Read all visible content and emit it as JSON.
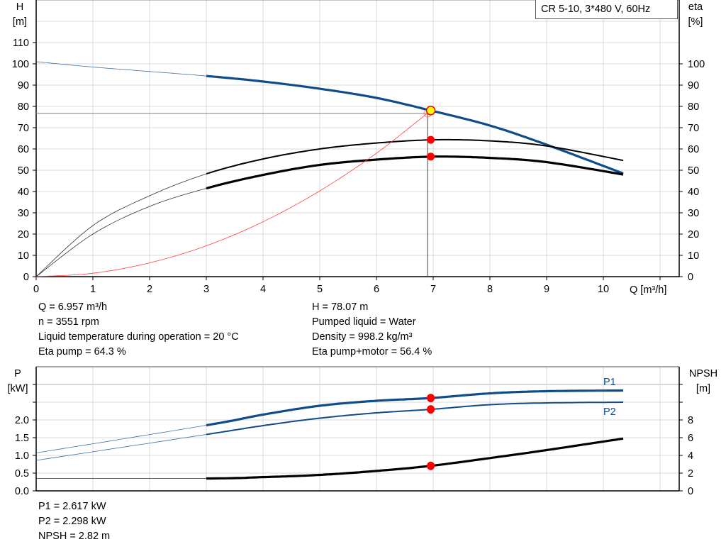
{
  "chart_data": [
    {
      "type": "line",
      "legend_box": "CR 5-10, 3*480 V, 60Hz",
      "xlabel": "Q [m³/h]",
      "ylabel_left": [
        "H",
        "[m]"
      ],
      "ylabel_right": [
        "eta",
        "[%]"
      ],
      "xlim": [
        0,
        11.3
      ],
      "ylim": [
        0,
        120
      ],
      "grid": true,
      "x_ticks": [
        "0",
        "1",
        "2",
        "3",
        "4",
        "5",
        "6",
        "7",
        "8",
        "9",
        "10"
      ],
      "y_ticks_left": [
        "0",
        "10",
        "20",
        "30",
        "40",
        "50",
        "60",
        "70",
        "80",
        "90",
        "100",
        "110"
      ],
      "y_ticks_right": [
        "0",
        "10",
        "20",
        "30",
        "40",
        "50",
        "60",
        "70",
        "80",
        "90",
        "100"
      ],
      "colors": {
        "head": "#0f4c8a",
        "eta": "#000000",
        "system": "#ff4040",
        "point": "#ff0000",
        "duty": "#ffff00"
      },
      "series": [
        {
          "key": "H",
          "color": "#0f4c8a",
          "thick_from": 3,
          "x": [
            0,
            1,
            2,
            3,
            4,
            5,
            6,
            6.957,
            8,
            9,
            10.35
          ],
          "y": [
            101,
            98.5,
            96.4,
            94.3,
            91.7,
            88.3,
            84,
            78.07,
            71,
            62,
            48.5
          ]
        },
        {
          "key": "eta_pump",
          "color": "#000000",
          "thick_from": 3,
          "x": [
            0,
            1,
            2,
            3,
            4,
            5,
            6,
            7,
            8,
            9,
            10.35
          ],
          "y": [
            0,
            24,
            38,
            48.3,
            55.3,
            60,
            62.8,
            64.3,
            63.8,
            61.4,
            54.6
          ]
        },
        {
          "key": "eta_total",
          "color": "#000000",
          "thick_from": 3,
          "x": [
            0,
            1,
            2,
            3,
            4,
            5,
            6,
            7,
            8,
            9,
            10.35
          ],
          "y": [
            0,
            20,
            33,
            41.5,
            47.8,
            52.5,
            55,
            56.4,
            55.8,
            53.8,
            48
          ]
        },
        {
          "key": "system",
          "color": "#ff4040",
          "x": [
            0,
            1,
            2,
            3,
            4,
            5,
            6,
            6.957
          ],
          "y": [
            0,
            1.6,
            6.5,
            14.5,
            25.8,
            40.3,
            58,
            78.07
          ]
        }
      ],
      "duty_point": {
        "Q": 6.957,
        "H": 78.07
      },
      "eta_points": [
        64.3,
        56.4
      ]
    },
    {
      "type": "line",
      "ylabel_left": [
        "P",
        "[kW]"
      ],
      "ylabel_right": [
        "NPSH",
        "[m]"
      ],
      "xlim": [
        0,
        11.3
      ],
      "ylim_left": [
        0,
        3.5
      ],
      "ylim_right": [
        0,
        14
      ],
      "grid": true,
      "y_ticks_left": [
        "0.0",
        "0.5",
        "1.0",
        "1.5",
        "2.0"
      ],
      "y_ticks_right": [
        "0",
        "2",
        "4",
        "6",
        "8"
      ],
      "series": [
        {
          "name": "P1",
          "color": "#0f4c8a",
          "axis": "left",
          "thick_from": 3,
          "x": [
            0,
            3,
            4,
            5,
            6,
            6.957,
            8,
            9,
            10.35
          ],
          "y": [
            1.07,
            1.85,
            2.15,
            2.4,
            2.54,
            2.617,
            2.75,
            2.81,
            2.83
          ]
        },
        {
          "name": "P2",
          "color": "#0f4c8a",
          "axis": "left",
          "thick_from": 3,
          "x": [
            0,
            3,
            4,
            5,
            6,
            6.957,
            8,
            9,
            10.35
          ],
          "y": [
            0.86,
            1.59,
            1.84,
            2.05,
            2.2,
            2.298,
            2.43,
            2.48,
            2.5
          ]
        },
        {
          "key": "NPSH",
          "color": "#000000",
          "axis": "right",
          "thick_from": 3,
          "x": [
            0,
            3,
            4,
            5,
            6,
            6.957,
            8,
            9,
            10.35
          ],
          "y": [
            1.4,
            1.4,
            1.55,
            1.8,
            2.25,
            2.82,
            3.7,
            4.6,
            5.9
          ]
        }
      ],
      "points": {
        "P1": 2.617,
        "P2": 2.298,
        "NPSH": 2.82
      }
    }
  ],
  "info_top": {
    "left": [
      "Q = 6.957 m³/h",
      "n = 3551 rpm",
      "Liquid temperature during operation = 20 °C",
      "Eta pump = 64.3 %"
    ],
    "right": [
      "H = 78.07 m",
      "Pumped liquid = Water",
      "Density = 998.2 kg/m³",
      "Eta pump+motor = 56.4 %"
    ]
  },
  "info_bottom": [
    "P1 = 2.617 kW",
    "P2 = 2.298 kW",
    "NPSH = 2.82 m"
  ]
}
